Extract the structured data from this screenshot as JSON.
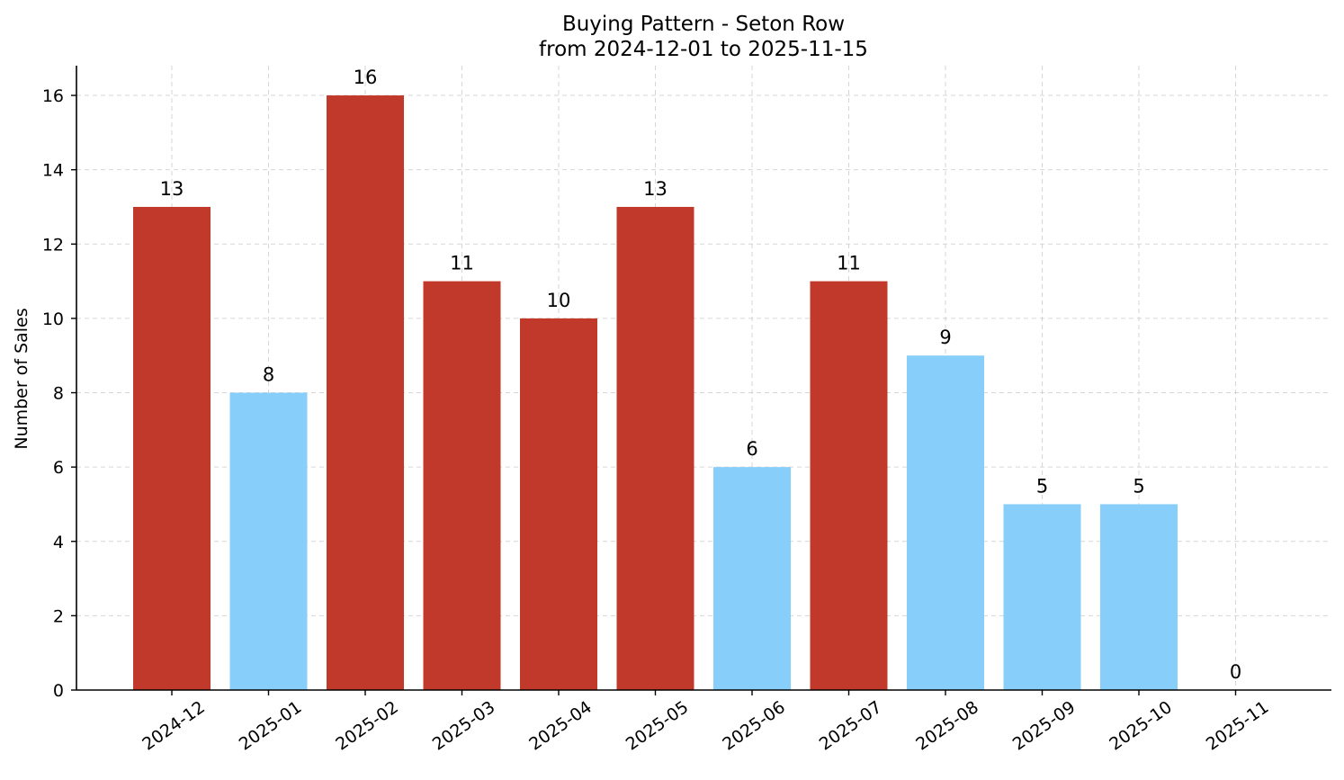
{
  "chart_data": {
    "type": "bar",
    "title": "Buying Pattern - Seton Row",
    "subtitle": "from 2024-12-01 to 2025-11-15",
    "xlabel": "",
    "ylabel": "Number of Sales",
    "categories": [
      "2024-12",
      "2025-01",
      "2025-02",
      "2025-03",
      "2025-04",
      "2025-05",
      "2025-06",
      "2025-07",
      "2025-08",
      "2025-09",
      "2025-10",
      "2025-11"
    ],
    "values": [
      13,
      8,
      16,
      11,
      10,
      13,
      6,
      11,
      9,
      5,
      5,
      0
    ],
    "bar_colors": [
      "#c0392b",
      "#87cefa",
      "#c0392b",
      "#c0392b",
      "#c0392b",
      "#c0392b",
      "#87cefa",
      "#c0392b",
      "#87cefa",
      "#87cefa",
      "#87cefa",
      "#87cefa"
    ],
    "ylim": [
      0,
      16.8
    ],
    "yticks": [
      0,
      2,
      4,
      6,
      8,
      10,
      12,
      14,
      16
    ],
    "grid": true,
    "legend": "none",
    "data_labels": true
  }
}
